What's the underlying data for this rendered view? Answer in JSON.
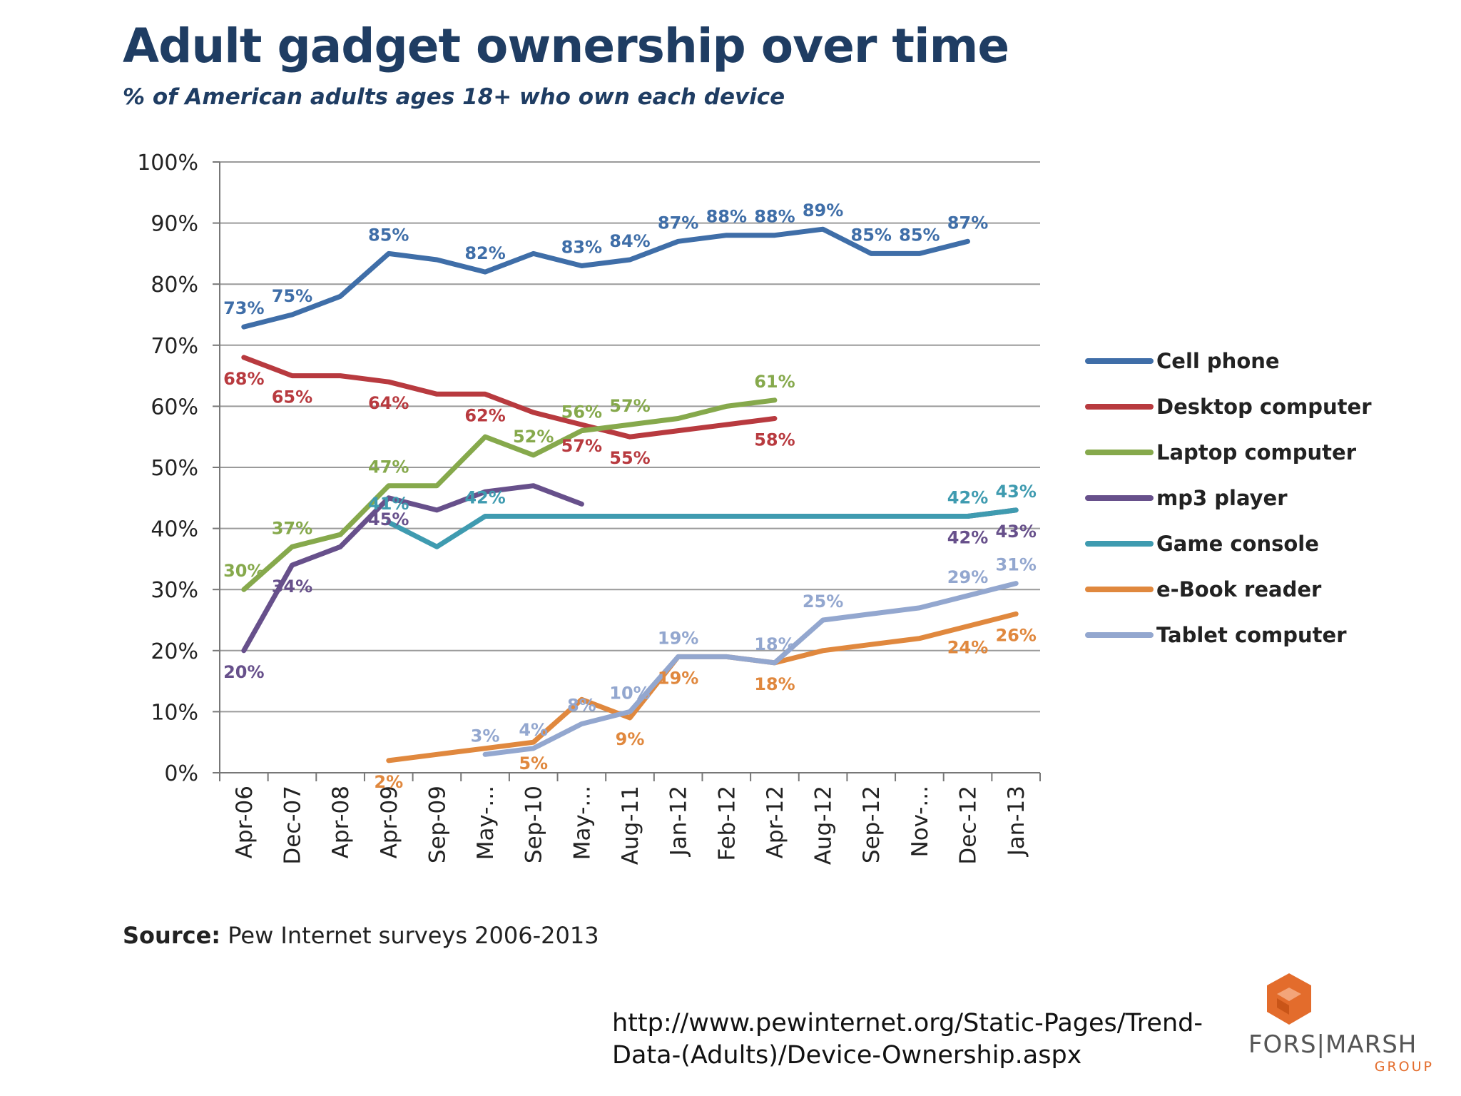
{
  "header": {
    "title": "Adult gadget ownership over time",
    "subtitle": "% of American adults ages 18+ who own each device"
  },
  "footer": {
    "source_label": "Source:",
    "source_text": " Pew Internet surveys 2006-2013",
    "url_line1": "http://www.pewinternet.org/Static-Pages/Trend-",
    "url_line2": "Data-(Adults)/Device-Ownership.aspx"
  },
  "logo": {
    "name": "FORS|MARSH",
    "sub": "GROUP",
    "color": "#e36c2c"
  },
  "chart_data": {
    "type": "line",
    "title": "Adult gadget ownership over time",
    "subtitle": "% of American adults ages 18+ who own each device",
    "categories": [
      "Apr-06",
      "Dec-07",
      "Apr-08",
      "Apr-09",
      "Sep-09",
      "May-...",
      "Sep-10",
      "May-...",
      "Aug-11",
      "Jan-12",
      "Feb-12",
      "Apr-12",
      "Aug-12",
      "Sep-12",
      "Nov-...",
      "Dec-12",
      "Jan-13"
    ],
    "y_ticks": [
      "0%",
      "10%",
      "20%",
      "30%",
      "40%",
      "50%",
      "60%",
      "70%",
      "80%",
      "90%",
      "100%"
    ],
    "ylim": [
      0,
      100
    ],
    "grid": true,
    "legend_position": "right",
    "series": [
      {
        "name": "Cell phone",
        "color": "#3f6ea8",
        "values": [
          73,
          75,
          78,
          85,
          84,
          82,
          85,
          83,
          84,
          87,
          88,
          88,
          89,
          85,
          85,
          87,
          null
        ],
        "labels": [
          "73%",
          "75%",
          "",
          "85%",
          "",
          "82%",
          "",
          "83%",
          "84%",
          "87%",
          "88%",
          "88%",
          "89%",
          "85%",
          "85%",
          "87%",
          ""
        ]
      },
      {
        "name": "Desktop computer",
        "color": "#b83a3f",
        "values": [
          68,
          65,
          65,
          64,
          62,
          62,
          59,
          57,
          55,
          56,
          57,
          58,
          null,
          null,
          null,
          null,
          null
        ],
        "labels": [
          "68%",
          "65%",
          "",
          "64%",
          "",
          "62%",
          "",
          "57%",
          "55%",
          "",
          "",
          "58%",
          "",
          "",
          "",
          "",
          ""
        ]
      },
      {
        "name": "Laptop computer",
        "color": "#86a94c",
        "values": [
          30,
          37,
          39,
          47,
          47,
          55,
          52,
          56,
          57,
          58,
          60,
          61,
          null,
          null,
          null,
          null,
          null
        ],
        "labels": [
          "30%",
          "37%",
          "",
          "47%",
          "",
          "",
          "52%",
          "56%",
          "57%",
          "",
          "",
          "61%",
          "",
          "",
          "",
          "",
          ""
        ]
      },
      {
        "name": "mp3 player",
        "color": "#67508b",
        "values": [
          20,
          34,
          37,
          45,
          43,
          46,
          47,
          44,
          null,
          null,
          null,
          null,
          null,
          null,
          null,
          42,
          43
        ],
        "labels": [
          "20%",
          "34%",
          "",
          "45%",
          "",
          "",
          "",
          "",
          "",
          "",
          "",
          "",
          "",
          "",
          "",
          "42%",
          "43%"
        ]
      },
      {
        "name": "Game console",
        "color": "#3f9bb0",
        "values": [
          null,
          null,
          null,
          41,
          37,
          42,
          42,
          42,
          42,
          42,
          42,
          42,
          42,
          42,
          42,
          42,
          43
        ],
        "labels": [
          "",
          "",
          "",
          "41%",
          "",
          "42%",
          "",
          "",
          "",
          "",
          "",
          "",
          "",
          "",
          "",
          "42%",
          "43%"
        ]
      },
      {
        "name": "e-Book reader",
        "color": "#e0883e",
        "values": [
          null,
          null,
          null,
          2,
          3,
          4,
          5,
          12,
          9,
          19,
          19,
          18,
          20,
          21,
          22,
          24,
          26
        ],
        "labels": [
          "",
          "",
          "",
          "2%",
          "",
          "",
          "5%",
          "",
          "9%",
          "19%",
          "",
          "18%",
          "",
          "",
          "",
          "24%",
          "26%"
        ]
      },
      {
        "name": "Tablet computer",
        "color": "#93a7cf",
        "values": [
          null,
          null,
          null,
          null,
          null,
          3,
          4,
          8,
          10,
          19,
          19,
          18,
          25,
          26,
          27,
          29,
          31
        ],
        "labels": [
          "",
          "",
          "",
          "",
          "",
          "3%",
          "4%",
          "8%",
          "10%",
          "19%",
          "",
          "18%",
          "25%",
          "",
          "",
          "29%",
          "31%"
        ]
      }
    ]
  }
}
